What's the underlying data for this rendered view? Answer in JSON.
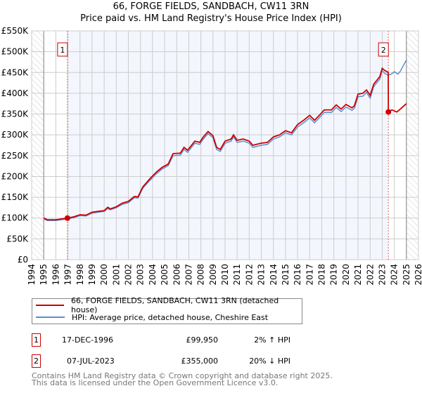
{
  "chart_data": {
    "type": "line",
    "title": "66, FORGE FIELDS, SANDBACH, CW11 3RN",
    "subtitle": "Price paid vs. HM Land Registry's House Price Index (HPI)",
    "xlim": [
      1994,
      2026
    ],
    "ylim": [
      0,
      550000
    ],
    "x_ticks": [
      "1994",
      "1995",
      "1996",
      "1997",
      "1998",
      "1999",
      "2000",
      "2001",
      "2002",
      "2003",
      "2004",
      "2005",
      "2006",
      "2007",
      "2008",
      "2009",
      "2010",
      "2011",
      "2012",
      "2013",
      "2014",
      "2015",
      "2016",
      "2017",
      "2018",
      "2019",
      "2020",
      "2021",
      "2022",
      "2023",
      "2024",
      "2025",
      "2026"
    ],
    "y_ticks": [
      {
        "value": 0,
        "label": "£0"
      },
      {
        "value": 50000,
        "label": "£50K"
      },
      {
        "value": 100000,
        "label": "£100K"
      },
      {
        "value": 150000,
        "label": "£150K"
      },
      {
        "value": 200000,
        "label": "£200K"
      },
      {
        "value": 250000,
        "label": "£250K"
      },
      {
        "value": 300000,
        "label": "£300K"
      },
      {
        "value": 350000,
        "label": "£350K"
      },
      {
        "value": 400000,
        "label": "£400K"
      },
      {
        "value": 450000,
        "label": "£450K"
      },
      {
        "value": 500000,
        "label": "£500K"
      },
      {
        "value": 550000,
        "label": "£550K"
      }
    ],
    "grid": true,
    "series": [
      {
        "name": "66, FORGE FIELDS, SANDBACH, CW11 3RN (detached house)",
        "color": "#cc0000",
        "x": [
          1995.0,
          1995.3,
          1996.0,
          1996.96,
          1997.5,
          1998.0,
          1998.5,
          1999.0,
          1999.5,
          2000.0,
          2000.3,
          2000.5,
          2001.0,
          2001.5,
          2002.0,
          2002.5,
          2002.8,
          2003.2,
          2003.8,
          2004.3,
          2004.8,
          2005.3,
          2005.7,
          2006.3,
          2006.6,
          2006.9,
          2007.5,
          2007.9,
          2008.2,
          2008.6,
          2009.0,
          2009.3,
          2009.6,
          2010.0,
          2010.5,
          2010.7,
          2011.0,
          2011.5,
          2012.0,
          2012.3,
          2013.0,
          2013.5,
          2014.0,
          2014.5,
          2015.0,
          2015.5,
          2016.0,
          2016.5,
          2017.0,
          2017.4,
          2017.8,
          2018.2,
          2018.8,
          2019.2,
          2019.6,
          2020.0,
          2020.5,
          2020.7,
          2021.0,
          2021.4,
          2021.7,
          2022.0,
          2022.3,
          2022.8,
          2023.0,
          2023.2,
          2023.5,
          2023.51,
          2023.8,
          2024.2,
          2024.5,
          2025.0
        ],
        "y": [
          100000,
          96000,
          96000,
          99950,
          103000,
          108000,
          107000,
          114000,
          116000,
          118000,
          126000,
          122000,
          127000,
          136000,
          140000,
          152000,
          151000,
          175000,
          195000,
          210000,
          222000,
          230000,
          255000,
          256000,
          270000,
          263000,
          285000,
          282000,
          295000,
          308000,
          298000,
          270000,
          265000,
          285000,
          290000,
          300000,
          287000,
          290000,
          285000,
          275000,
          280000,
          282000,
          295000,
          300000,
          310000,
          305000,
          325000,
          335000,
          347000,
          335000,
          347000,
          360000,
          360000,
          372000,
          362000,
          373000,
          365000,
          370000,
          398000,
          400000,
          408000,
          395000,
          422000,
          440000,
          460000,
          455000,
          450000,
          355000,
          360000,
          355000,
          362000,
          375000
        ]
      },
      {
        "name": "HPI: Average price, detached house, Cheshire East",
        "color": "#5b8fd0",
        "x": [
          1995.0,
          1995.3,
          1996.0,
          1996.96,
          1997.5,
          1998.0,
          1998.5,
          1999.0,
          1999.5,
          2000.0,
          2000.3,
          2000.5,
          2001.0,
          2001.5,
          2002.0,
          2002.5,
          2002.8,
          2003.2,
          2003.8,
          2004.3,
          2004.8,
          2005.3,
          2005.7,
          2006.3,
          2006.6,
          2006.9,
          2007.5,
          2007.9,
          2008.2,
          2008.6,
          2009.0,
          2009.3,
          2009.6,
          2010.0,
          2010.5,
          2010.7,
          2011.0,
          2011.5,
          2012.0,
          2012.3,
          2013.0,
          2013.5,
          2014.0,
          2014.5,
          2015.0,
          2015.5,
          2016.0,
          2016.5,
          2017.0,
          2017.4,
          2017.8,
          2018.2,
          2018.8,
          2019.2,
          2019.6,
          2020.0,
          2020.5,
          2020.7,
          2021.0,
          2021.4,
          2021.7,
          2022.0,
          2022.3,
          2022.8,
          2023.0,
          2023.2,
          2023.5,
          2023.8,
          2024.0,
          2024.3,
          2024.5,
          2025.0
        ],
        "y": [
          98000,
          94000,
          94000,
          98000,
          101000,
          106000,
          105000,
          112000,
          114000,
          116000,
          123000,
          120000,
          125000,
          133000,
          137000,
          149000,
          148000,
          172000,
          191000,
          206000,
          218000,
          226000,
          250000,
          251000,
          265000,
          258000,
          280000,
          277000,
          290000,
          303000,
          293000,
          265000,
          260000,
          280000,
          285000,
          295000,
          282000,
          285000,
          280000,
          270000,
          275000,
          277000,
          290000,
          295000,
          305000,
          300000,
          319000,
          329000,
          341000,
          329000,
          341000,
          354000,
          354000,
          366000,
          356000,
          367000,
          359000,
          364000,
          392000,
          393000,
          402000,
          388000,
          416000,
          434000,
          455000,
          448000,
          443000,
          447000,
          452000,
          446000,
          453000,
          480000
        ]
      }
    ],
    "sales": [
      {
        "label": "1",
        "x": 1996.96,
        "y": 99950
      },
      {
        "label": "2",
        "x": 2023.51,
        "y": 355000
      }
    ],
    "legend_placement": "bottom"
  },
  "table": [
    {
      "num": "1",
      "date": "17-DEC-1996",
      "price": "£99,950",
      "hpi": "2% ↑ HPI"
    },
    {
      "num": "2",
      "date": "07-JUL-2023",
      "price": "£355,000",
      "hpi": "20% ↓ HPI"
    }
  ],
  "footer": [
    "Contains HM Land Registry data © Crown copyright and database right 2025.",
    "This data is licensed under the Open Government Licence v3.0."
  ]
}
